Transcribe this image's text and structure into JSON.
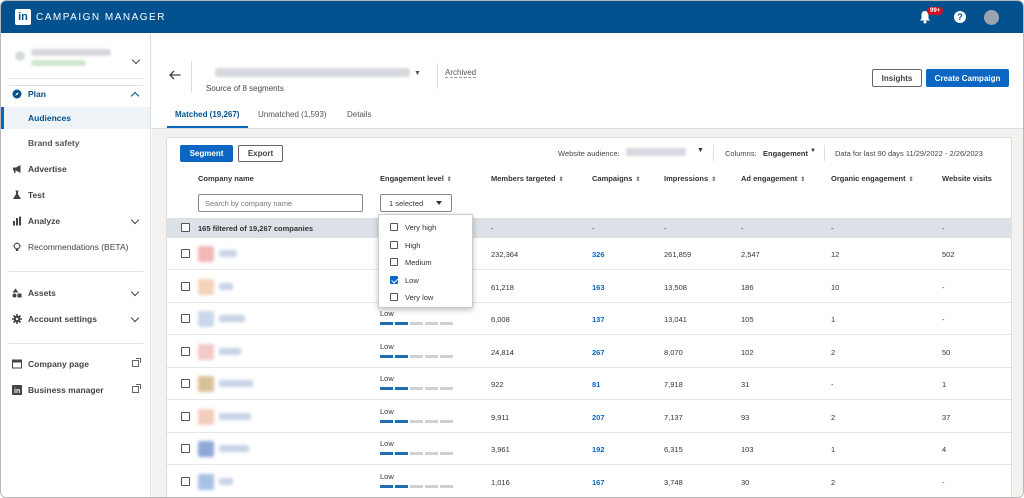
{
  "topbar": {
    "brand": "CAMPAIGN MANAGER",
    "logo_text": "in",
    "notifications": "99+",
    "help": "?"
  },
  "sidebar": {
    "plan": "Plan",
    "audiences": "Audiences",
    "brand_safety": "Brand safety",
    "advertise": "Advertise",
    "test": "Test",
    "analyze": "Analyze",
    "recommendations": "Recommendations (BETA)",
    "assets": "Assets",
    "account_settings": "Account settings",
    "company_page": "Company page",
    "business_manager": "Business manager"
  },
  "header": {
    "source": "Source of 8 segments",
    "archived": "Archived",
    "insights": "Insights",
    "create_campaign": "Create Campaign",
    "tabs": [
      "Matched (19,267)",
      "Unmatched (1,593)",
      "Details"
    ]
  },
  "toolbar": {
    "segment": "Segment",
    "export": "Export",
    "website_audience": "Website audience:",
    "columns_label": "Columns:",
    "columns_value": "Engagement",
    "date_range": "Data for last 90 days 11/29/2022 - 2/26/2023"
  },
  "table": {
    "headers": [
      "Company name",
      "Engagement level",
      "Members targeted",
      "Campaigns",
      "Impressions",
      "Ad engagement",
      "Organic engagement",
      "Website visits"
    ],
    "search_placeholder": "Search by company name",
    "engagement_filter": "1 selected",
    "summary": {
      "label": "165 filtered of 19,267 companies",
      "dash": "-"
    },
    "rows": [
      {
        "engagement": "",
        "members": "232,364",
        "campaigns": "326",
        "impressions": "261,859",
        "ad_engagement": "2,547",
        "organic": "12",
        "visits": "502",
        "level": 1
      },
      {
        "engagement": "",
        "members": "61,218",
        "campaigns": "163",
        "impressions": "13,508",
        "ad_engagement": "186",
        "organic": "10",
        "visits": "-",
        "level": 1
      },
      {
        "engagement": "Low",
        "members": "6,008",
        "campaigns": "137",
        "impressions": "13,041",
        "ad_engagement": "105",
        "organic": "1",
        "visits": "-",
        "level": 2
      },
      {
        "engagement": "Low",
        "members": "24,814",
        "campaigns": "267",
        "impressions": "8,070",
        "ad_engagement": "102",
        "organic": "2",
        "visits": "50",
        "level": 2
      },
      {
        "engagement": "Low",
        "members": "922",
        "campaigns": "81",
        "impressions": "7,918",
        "ad_engagement": "31",
        "organic": "-",
        "visits": "1",
        "level": 2
      },
      {
        "engagement": "Low",
        "members": "9,911",
        "campaigns": "207",
        "impressions": "7,137",
        "ad_engagement": "93",
        "organic": "2",
        "visits": "37",
        "level": 2
      },
      {
        "engagement": "Low",
        "members": "3,961",
        "campaigns": "192",
        "impressions": "6,315",
        "ad_engagement": "103",
        "organic": "1",
        "visits": "4",
        "level": 2
      },
      {
        "engagement": "Low",
        "members": "1,016",
        "campaigns": "167",
        "impressions": "3,748",
        "ad_engagement": "30",
        "organic": "2",
        "visits": "-",
        "level": 2
      }
    ]
  },
  "engagement_menu": {
    "options": [
      {
        "label": "Very high",
        "checked": false
      },
      {
        "label": "High",
        "checked": false
      },
      {
        "label": "Medium",
        "checked": false
      },
      {
        "label": "Low",
        "checked": true
      },
      {
        "label": "Very low",
        "checked": false
      }
    ]
  },
  "colors": {
    "topbar": "#03528f",
    "primary": "#0a66c2",
    "summary_bg": "#dbe1e6",
    "bar_on": "#1f6fb0"
  }
}
